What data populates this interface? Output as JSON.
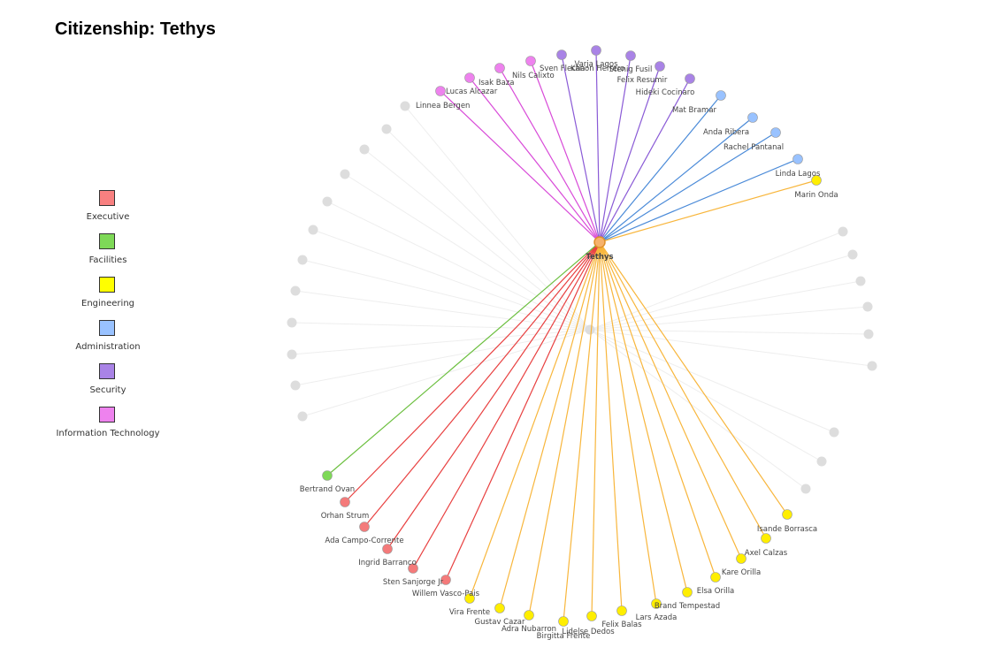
{
  "title": "Citizenship: Tethys",
  "center": {
    "label": "Tethys",
    "color": "#f6b26b"
  },
  "legend": [
    {
      "label": "Executive",
      "color": "#f88080"
    },
    {
      "label": "Facilities",
      "color": "#7ed957"
    },
    {
      "label": "Engineering",
      "color": "#ffff00"
    },
    {
      "label": "Administration",
      "color": "#99c2ff"
    },
    {
      "label": "Security",
      "color": "#a983e6"
    },
    {
      "label": "Information Technology",
      "color": "#ee82ee"
    }
  ],
  "departments": {
    "Executive": {
      "node": "#f47a7a",
      "edge": "#e84040"
    },
    "Facilities": {
      "node": "#7ed957",
      "edge": "#6bbf3e"
    },
    "Engineering": {
      "node": "#ffee00",
      "edge": "#f8b63c"
    },
    "Administration": {
      "node": "#99c2ff",
      "edge": "#4a8ad8"
    },
    "Security": {
      "node": "#a983e6",
      "edge": "#8a5ad6"
    },
    "Information Technology": {
      "node": "#ee82ee",
      "edge": "#d84ad8"
    }
  },
  "people": [
    {
      "name": "Linnea Bergen",
      "dept": null
    },
    {
      "name": "Lucas Alcazar",
      "dept": "Information Technology"
    },
    {
      "name": "Isak Baza",
      "dept": "Information Technology"
    },
    {
      "name": "Nils Calixto",
      "dept": "Information Technology"
    },
    {
      "name": "Sven Flecha",
      "dept": "Information Technology"
    },
    {
      "name": "Kanon Herrero",
      "dept": "Security"
    },
    {
      "name": "Varja Lagos",
      "dept": "Security"
    },
    {
      "name": "Stenig Fusil",
      "dept": "Security"
    },
    {
      "name": "Felix Resumir",
      "dept": "Security"
    },
    {
      "name": "Hideki Cocinaro",
      "dept": "Security"
    },
    {
      "name": "Mat Bramar",
      "dept": "Administration"
    },
    {
      "name": "Anda Ribera",
      "dept": "Administration"
    },
    {
      "name": "Rachel Pantanal",
      "dept": "Administration"
    },
    {
      "name": "Linda Lagos",
      "dept": "Administration"
    },
    {
      "name": "Marin Onda",
      "dept": "Engineering"
    },
    {
      "name": "Isande Borrasca",
      "dept": "Engineering"
    },
    {
      "name": "Axel Calzas",
      "dept": "Engineering"
    },
    {
      "name": "Kare Orilla",
      "dept": "Engineering"
    },
    {
      "name": "Elsa Orilla",
      "dept": "Engineering"
    },
    {
      "name": "Brand Tempestad",
      "dept": "Engineering"
    },
    {
      "name": "Lars Azada",
      "dept": "Engineering"
    },
    {
      "name": "Felix Balas",
      "dept": "Engineering"
    },
    {
      "name": "Lidelse Dedos",
      "dept": "Engineering"
    },
    {
      "name": "Birgitta Frente",
      "dept": "Engineering"
    },
    {
      "name": "Adra Nubarron",
      "dept": "Engineering"
    },
    {
      "name": "Gustav Cazar",
      "dept": "Engineering"
    },
    {
      "name": "Vira Frente",
      "dept": "Engineering"
    },
    {
      "name": "Willem Vasco-Pais",
      "dept": "Executive"
    },
    {
      "name": "Sten Sanjorge Jr",
      "dept": "Executive"
    },
    {
      "name": "Ingrid Barranco",
      "dept": "Executive"
    },
    {
      "name": "Ada Campo-Corrente",
      "dept": "Executive"
    },
    {
      "name": "Orhan Strum",
      "dept": "Executive"
    },
    {
      "name": "Bertrand Ovan",
      "dept": "Facilities"
    }
  ],
  "inactive_color": "#dddddd",
  "inactive_edge": "#eeeeee"
}
